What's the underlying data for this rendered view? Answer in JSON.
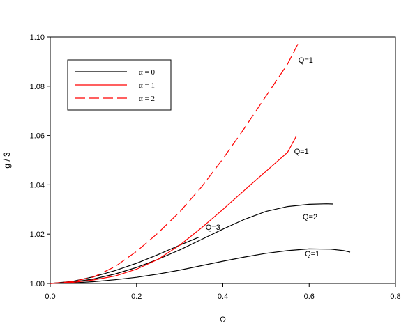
{
  "chart_data": {
    "type": "line",
    "title": "",
    "xlabel": "Ω",
    "ylabel": "g / 3",
    "xlim": [
      0.0,
      0.8
    ],
    "ylim": [
      1.0,
      1.1
    ],
    "xticks": [
      "0.0",
      "0.2",
      "0.4",
      "0.6",
      "0.8"
    ],
    "yticks": [
      "1.00",
      "1.02",
      "1.04",
      "1.06",
      "1.08",
      "1.10"
    ],
    "grid": false,
    "legend_position": "top-left",
    "legend": [
      {
        "label": "α = 0",
        "color": "#000000",
        "dash": "solid"
      },
      {
        "label": "α = 1",
        "color": "#ff0000",
        "dash": "solid"
      },
      {
        "label": "α = 2",
        "color": "#ff0000",
        "dash": "dashed"
      }
    ],
    "series": [
      {
        "color": "#000000",
        "dash": "solid",
        "x": [
          0.0,
          0.05,
          0.1,
          0.15,
          0.2,
          0.25,
          0.3,
          0.35,
          0.4,
          0.45,
          0.5,
          0.55,
          0.6,
          0.65,
          0.68,
          0.695
        ],
        "y": [
          1.0,
          1.0002,
          1.0007,
          1.0015,
          1.0025,
          1.0038,
          1.0054,
          1.0072,
          1.009,
          1.0107,
          1.0122,
          1.0133,
          1.014,
          1.0139,
          1.0133,
          1.0127
        ]
      },
      {
        "color": "#000000",
        "dash": "solid",
        "x": [
          0.0,
          0.05,
          0.1,
          0.15,
          0.2,
          0.25,
          0.3,
          0.35,
          0.4,
          0.45,
          0.5,
          0.55,
          0.6,
          0.64,
          0.655
        ],
        "y": [
          1.0,
          1.0005,
          1.0018,
          1.0038,
          1.0065,
          1.0098,
          1.0136,
          1.0178,
          1.022,
          1.026,
          1.0292,
          1.0312,
          1.0321,
          1.0323,
          1.0322
        ]
      },
      {
        "color": "#000000",
        "dash": "solid",
        "x": [
          0.0,
          0.05,
          0.1,
          0.15,
          0.2,
          0.25,
          0.3,
          0.345
        ],
        "y": [
          1.0,
          1.0008,
          1.0027,
          1.0052,
          1.0082,
          1.0117,
          1.0155,
          1.0188
        ]
      },
      {
        "color": "#ff0000",
        "dash": "solid",
        "x": [
          0.0,
          0.05,
          0.1,
          0.15,
          0.2,
          0.25,
          0.3,
          0.35,
          0.4,
          0.45,
          0.5,
          0.55,
          0.57
        ],
        "y": [
          1.0,
          1.0004,
          1.0014,
          1.003,
          1.0058,
          1.0098,
          1.0155,
          1.0225,
          1.03,
          1.0378,
          1.0455,
          1.0532,
          1.0597
        ]
      },
      {
        "color": "#ff0000",
        "dash": "dashed",
        "x": [
          0.0,
          0.05,
          0.1,
          0.15,
          0.2,
          0.25,
          0.3,
          0.35,
          0.4,
          0.45,
          0.5,
          0.55,
          0.575
        ],
        "y": [
          1.0,
          1.0007,
          1.0026,
          1.0068,
          1.013,
          1.0205,
          1.029,
          1.039,
          1.0505,
          1.063,
          1.076,
          1.089,
          1.0975
        ]
      }
    ],
    "annotations": [
      {
        "text": "Q=1",
        "x": 0.575,
        "y": 1.0895
      },
      {
        "text": "Q=1",
        "x": 0.565,
        "y": 1.0525
      },
      {
        "text": "Q=2",
        "x": 0.585,
        "y": 1.026
      },
      {
        "text": "Q=3",
        "x": 0.36,
        "y": 1.0218
      },
      {
        "text": "Q=1",
        "x": 0.59,
        "y": 1.011
      }
    ]
  }
}
